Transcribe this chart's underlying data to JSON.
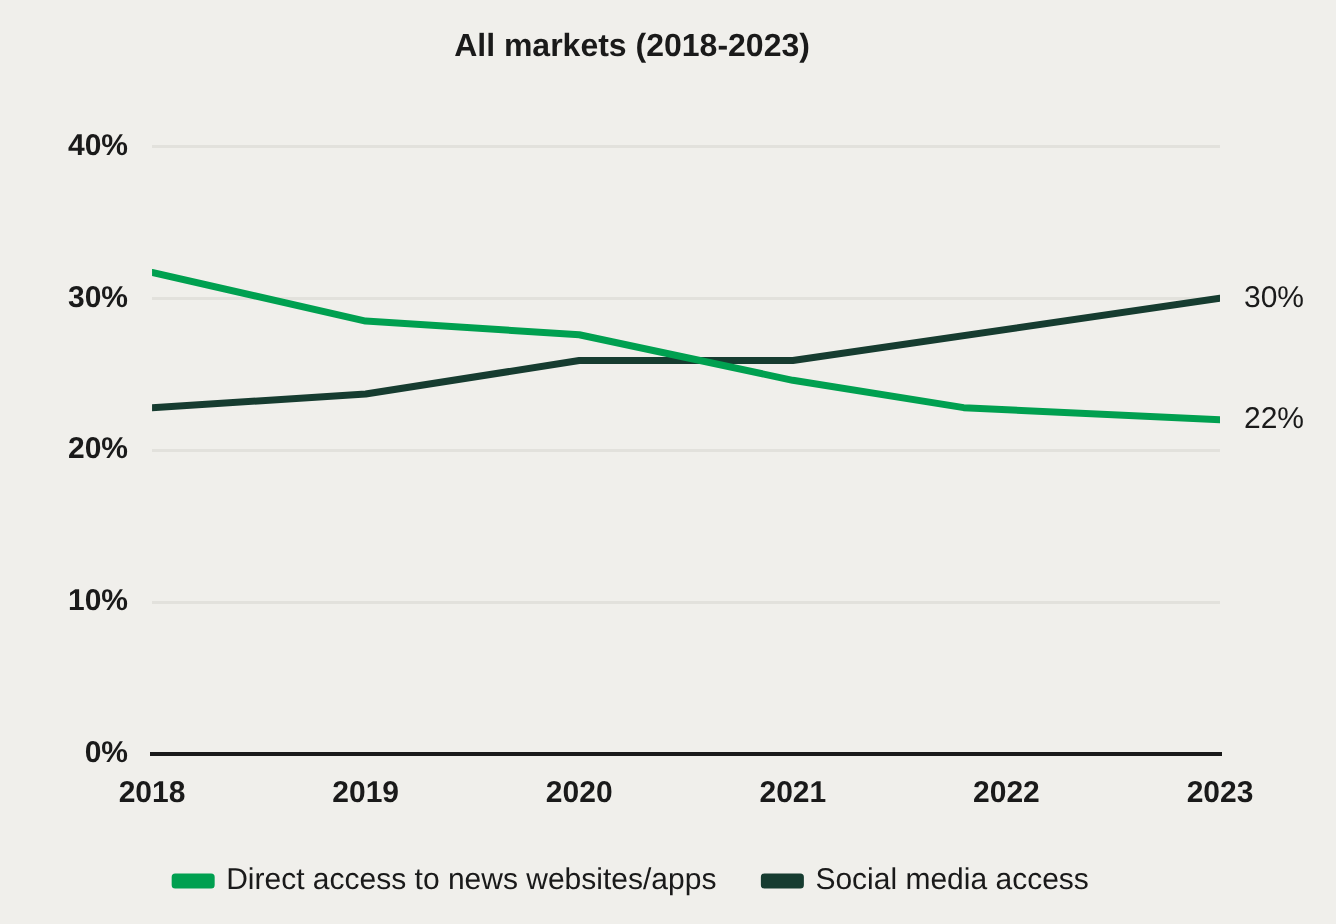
{
  "chart_data": {
    "type": "line",
    "title": "All markets (2018-2023)",
    "xlim": [
      2018,
      2023
    ],
    "xticks": [
      2018,
      2019,
      2020,
      2021,
      2022,
      2023
    ],
    "ylim": [
      0,
      40
    ],
    "yticks": [
      {
        "value": 0,
        "label": "0%"
      },
      {
        "value": 10,
        "label": "10%"
      },
      {
        "value": 20,
        "label": "20%"
      },
      {
        "value": 30,
        "label": "30%"
      },
      {
        "value": 40,
        "label": "40%"
      }
    ],
    "series": [
      {
        "name": "Direct access to news websites/apps",
        "color": "#00a050",
        "x": [
          2018,
          2019,
          2020,
          2021,
          2021.8,
          2023
        ],
        "values": [
          31.7,
          28.5,
          27.6,
          24.6,
          22.8,
          22
        ]
      },
      {
        "name": "Social media access",
        "color": "#163c30",
        "x": [
          2018,
          2019,
          2020,
          2021,
          2023
        ],
        "values": [
          22.8,
          23.7,
          25.9,
          25.9,
          30
        ]
      }
    ],
    "annotations": [
      {
        "text": "30%",
        "x": 2023,
        "y": 30
      },
      {
        "text": "22%",
        "x": 2023,
        "y": 22
      }
    ],
    "grid": "y",
    "legend": "bottom",
    "marker": "none",
    "line_style": "solid"
  }
}
